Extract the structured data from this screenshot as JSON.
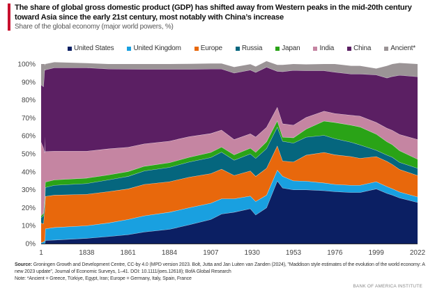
{
  "header": {
    "title": "The share of global gross domestic product (GDP) has shifted away from Western peaks in the mid-20th century toward Asia since the early 21st century, most notably with China’s increase",
    "subtitle": "Share of the global economy (major world powers, %)"
  },
  "footer": {
    "source_label": "Source:",
    "source_text": " Groningen Growth and Development Centre, CC-by 4.0 (MPD version 2023. Bolt, Jutta and Jan Luiten van Zanden (2024), \"Maddison style estimates of the evolution of the world economy: A new 2023 update\", Journal of Economic Surveys, 1–41. DOI: 10.1111/joes.12618); BofA Global Research",
    "note": "Note: *Ancient = Greece, Türkiye, Egypt, Iran; Europe = Germany, Italy, Spain, France",
    "brand": "BANK OF AMERICA INSTITUTE"
  },
  "chart_data": {
    "type": "area",
    "stacked": true,
    "title": "Share of the global economy (major world powers, %)",
    "xlabel": "",
    "ylabel": "",
    "ylim": [
      0,
      100
    ],
    "y_ticks": [
      "0%",
      "10%",
      "20%",
      "30%",
      "40%",
      "50%",
      "60%",
      "70%",
      "80%",
      "90%",
      "100%"
    ],
    "x_ticks": [
      "1",
      "1838",
      "1861",
      "1884",
      "1907",
      "1930",
      "1953",
      "1976",
      "1999",
      "2022"
    ],
    "x": [
      1,
      1000,
      1500,
      1600,
      1700,
      1815,
      1820,
      1838,
      1850,
      1861,
      1870,
      1884,
      1895,
      1907,
      1913,
      1920,
      1929,
      1932,
      1938,
      1944,
      1947,
      1953,
      1960,
      1970,
      1976,
      1985,
      1990,
      1999,
      2005,
      2008,
      2012,
      2022
    ],
    "series": [
      {
        "name": "United States",
        "color": "#0b1f63",
        "values": [
          0.0,
          0.0,
          0.0,
          0.2,
          0.5,
          1.8,
          2.0,
          3.0,
          4.0,
          5.0,
          6.5,
          8.0,
          10.5,
          13.5,
          16.5,
          17.5,
          19.5,
          16.0,
          20.0,
          35.0,
          31.0,
          30.0,
          30.0,
          29.5,
          29.0,
          28.5,
          28.5,
          30.5,
          28.0,
          27.0,
          25.5,
          23.0
        ]
      },
      {
        "name": "United Kingdom",
        "color": "#19a0e0",
        "values": [
          0.5,
          1.0,
          1.5,
          1.8,
          3.0,
          6.5,
          7.0,
          7.0,
          7.5,
          8.5,
          9.0,
          9.5,
          9.5,
          9.0,
          8.5,
          7.5,
          7.0,
          7.5,
          7.0,
          6.0,
          6.5,
          5.0,
          4.8,
          4.3,
          4.0,
          4.0,
          4.0,
          4.0,
          3.8,
          3.6,
          3.3,
          3.0
        ]
      },
      {
        "name": "Europe",
        "color": "#e8680c",
        "values": [
          11.0,
          10.0,
          17.0,
          17.5,
          19.0,
          18.0,
          18.0,
          17.5,
          17.5,
          17.0,
          17.5,
          17.0,
          17.0,
          16.5,
          16.5,
          13.0,
          14.0,
          14.0,
          15.0,
          13.5,
          8.5,
          10.5,
          14.5,
          17.0,
          16.5,
          16.0,
          15.0,
          14.0,
          14.0,
          13.5,
          12.5,
          12.0
        ]
      },
      {
        "name": "Russia",
        "color": "#05667e",
        "values": [
          3.0,
          4.5,
          3.5,
          4.0,
          4.5,
          5.0,
          5.5,
          6.0,
          6.5,
          7.0,
          7.5,
          8.0,
          8.5,
          9.0,
          9.5,
          8.5,
          9.5,
          10.0,
          11.0,
          10.5,
          11.0,
          10.5,
          10.0,
          9.5,
          9.0,
          8.0,
          7.5,
          3.5,
          3.5,
          4.0,
          4.0,
          4.0
        ]
      },
      {
        "name": "Japan",
        "color": "#2aa317",
        "values": [
          1.0,
          1.5,
          2.5,
          3.0,
          3.5,
          3.0,
          3.0,
          3.0,
          2.8,
          2.7,
          2.6,
          2.6,
          2.6,
          2.8,
          2.8,
          3.0,
          3.2,
          3.4,
          3.8,
          3.5,
          2.3,
          3.0,
          4.5,
          8.0,
          9.0,
          9.5,
          10.0,
          9.0,
          7.5,
          7.0,
          6.5,
          5.0
        ]
      },
      {
        "name": "India",
        "color": "#c585a2",
        "values": [
          41.0,
          36.5,
          26.0,
          25.0,
          29.0,
          17.0,
          16.0,
          15.0,
          14.5,
          13.5,
          12.5,
          12.0,
          11.5,
          10.5,
          9.5,
          8.5,
          8.0,
          8.5,
          8.0,
          7.5,
          7.5,
          7.0,
          6.5,
          5.5,
          5.0,
          5.5,
          6.0,
          6.5,
          7.5,
          8.0,
          9.0,
          11.0
        ]
      },
      {
        "name": "China",
        "color": "#5b1f63",
        "values": [
          32.0,
          34.0,
          47.0,
          45.0,
          37.5,
          45.5,
          46.5,
          46.5,
          44.5,
          43.5,
          41.5,
          40.0,
          37.5,
          36.0,
          34.0,
          37.0,
          35.5,
          36.0,
          33.5,
          20.0,
          29.0,
          30.5,
          26.0,
          22.5,
          23.0,
          23.0,
          23.5,
          26.5,
          28.0,
          30.0,
          33.0,
          35.0
        ]
      },
      {
        "name": "Ancient*",
        "color": "#9b9496",
        "values": [
          11.5,
          12.5,
          2.5,
          3.5,
          2.0,
          3.2,
          3.0,
          2.5,
          2.7,
          2.8,
          2.9,
          2.9,
          3.0,
          3.0,
          3.0,
          3.3,
          3.2,
          3.2,
          3.3,
          3.5,
          3.7,
          3.5,
          3.5,
          3.7,
          4.5,
          4.5,
          4.5,
          3.5,
          6.7,
          6.9,
          6.8,
          7.0
        ]
      }
    ],
    "legend_position": "top",
    "grid": false
  }
}
